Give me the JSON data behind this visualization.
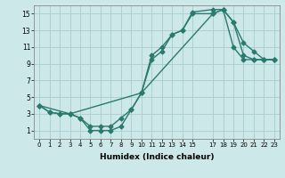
{
  "xlabel": "Humidex (Indice chaleur)",
  "bg_color": "#cce8e8",
  "grid_color": "#aacccc",
  "line_color": "#2a7a6e",
  "marker": "D",
  "markersize": 2.5,
  "linewidth": 1.0,
  "xlim": [
    -0.5,
    23.5
  ],
  "ylim": [
    0,
    16
  ],
  "xticks": [
    0,
    1,
    2,
    3,
    4,
    5,
    6,
    7,
    8,
    9,
    10,
    11,
    12,
    13,
    14,
    15,
    17,
    18,
    19,
    20,
    21,
    22,
    23
  ],
  "yticks": [
    1,
    3,
    5,
    7,
    9,
    11,
    13,
    15
  ],
  "line1_x": [
    0,
    1,
    2,
    3,
    4,
    5,
    6,
    7,
    8,
    9,
    10,
    11,
    12,
    13,
    14,
    15,
    17,
    18,
    19,
    20,
    21,
    22,
    23
  ],
  "line1_y": [
    4,
    3.2,
    3,
    3,
    2.5,
    1,
    1,
    1,
    1.5,
    3.5,
    5.5,
    10,
    11,
    12.5,
    13,
    15.2,
    15.5,
    15.5,
    11,
    9.5,
    9.5,
    9.5,
    9.5
  ],
  "line2_x": [
    0,
    1,
    2,
    3,
    4,
    5,
    6,
    7,
    8,
    9,
    10,
    11,
    12,
    13,
    14,
    15,
    17,
    18,
    19,
    20,
    21,
    22,
    23
  ],
  "line2_y": [
    4,
    3.2,
    3,
    3,
    2.5,
    1.5,
    1.5,
    1.5,
    2.5,
    3.5,
    5.5,
    9.5,
    10.5,
    12.5,
    13,
    15,
    15,
    15.5,
    14,
    11.5,
    10.5,
    9.5,
    9.5
  ],
  "line3_x": [
    0,
    3,
    10,
    17,
    18,
    19,
    20,
    21,
    22,
    23
  ],
  "line3_y": [
    4,
    3,
    5.5,
    15,
    15.5,
    14,
    10,
    9.5,
    9.5,
    9.5
  ]
}
